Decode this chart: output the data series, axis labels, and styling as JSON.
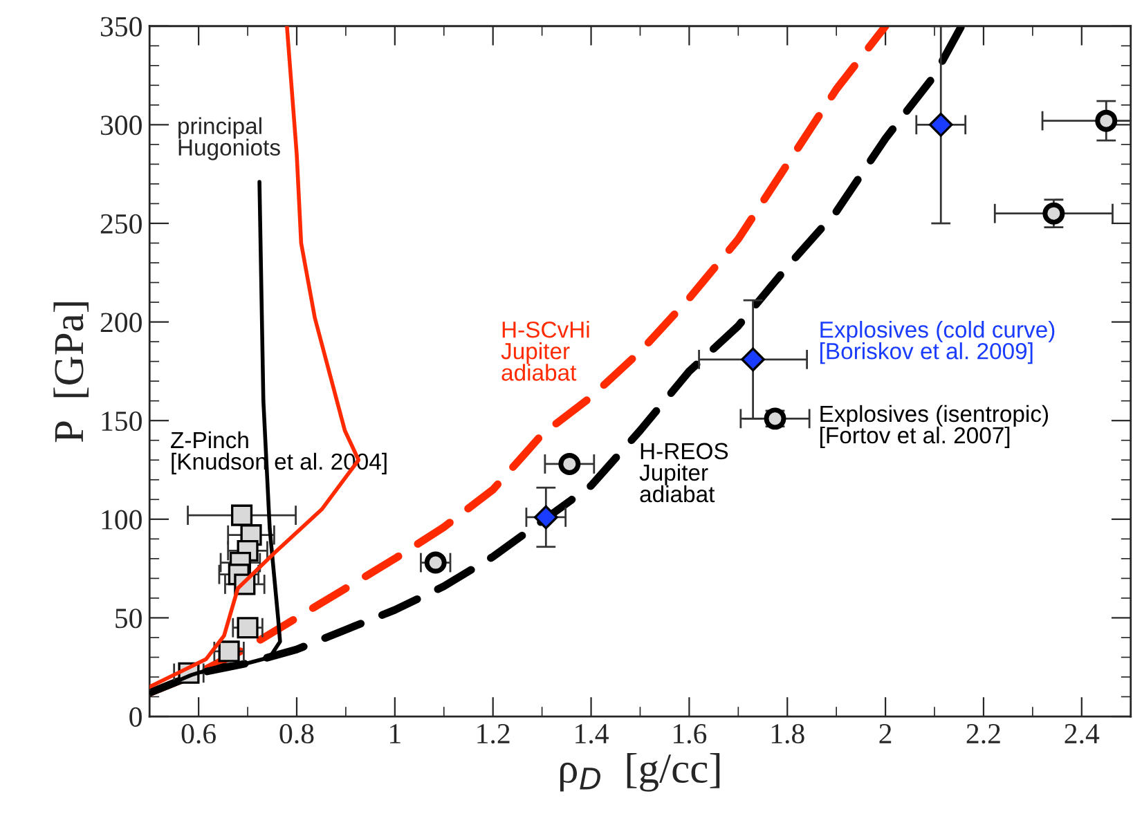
{
  "chart_data": {
    "type": "line",
    "xlabel": "ρ$_{D}$  [g/cc]",
    "ylabel": "P  [GPa]",
    "xlim": [
      0.5,
      2.5
    ],
    "ylim": [
      0,
      350
    ],
    "xticks": [
      0.6,
      0.8,
      1,
      1.2,
      1.4,
      1.6,
      1.8,
      2,
      2.2,
      2.4
    ],
    "yticks": [
      0,
      50,
      100,
      150,
      200,
      250,
      300,
      350
    ],
    "grid": false,
    "legend": false,
    "annotations": [
      "principal\nHugoniots"
    ],
    "series": [
      {
        "color": "#000000",
        "line_style": "solid",
        "x": [
          0.5,
          0.585,
          0.65,
          0.7,
          0.745,
          0.766,
          0.762,
          0.745,
          0.732,
          0.724
        ],
        "values": [
          12,
          21,
          26,
          27,
          30,
          38,
          50,
          95,
          160,
          271
        ]
      },
      {
        "color": "#ff2a00",
        "line_style": "solid",
        "x": [
          0.5,
          0.615,
          0.652,
          0.68,
          0.755,
          0.851,
          0.926,
          0.898,
          0.837,
          0.809,
          0.8,
          0.78
        ],
        "values": [
          15,
          29,
          41,
          65,
          83,
          105,
          130,
          145,
          202,
          240,
          285,
          350
        ]
      },
      {
        "name": "H-SCvHi\nJupiter\nadiabat",
        "color": "#ff2a00",
        "line_style": "dashed",
        "x": [
          0.5,
          0.6,
          0.7,
          0.8,
          0.9,
          1.0,
          1.1,
          1.2,
          1.3,
          1.4,
          1.5,
          1.6,
          1.7,
          1.8,
          1.9,
          2.0
        ],
        "values": [
          12,
          22,
          35,
          50,
          65,
          80,
          96,
          115,
          143,
          162,
          185,
          212,
          242,
          280,
          318,
          350
        ]
      },
      {
        "name": "H-REOS\nJupiter\nadiabat",
        "color": "#000000",
        "line_style": "dashed",
        "x": [
          0.5,
          0.6,
          0.7,
          0.8,
          0.9,
          1.0,
          1.1,
          1.2,
          1.3,
          1.4,
          1.5,
          1.6,
          1.7,
          1.8,
          1.9,
          2.0,
          2.1,
          2.155
        ],
        "values": [
          12,
          22,
          27,
          34,
          44,
          54,
          66,
          81,
          99,
          117,
          145,
          175,
          198,
          228,
          256,
          293,
          325,
          350
        ]
      },
      {
        "type": "scatter",
        "name": "Z-Pinch\n[Knudson et al. 2004]",
        "color": "#d9d9d9",
        "marker": "square",
        "x": [
          0.688,
          0.707,
          0.7,
          0.685,
          0.682,
          0.694,
          0.7,
          0.662,
          0.58
        ],
        "values": [
          102,
          92,
          84,
          78,
          72,
          67,
          45,
          33,
          22
        ],
        "xerrors": [
          0.11,
          0.047,
          0.04,
          0.04,
          0.04,
          0.04,
          0.03,
          0.03,
          0.03
        ]
      },
      {
        "type": "scatter",
        "name": "Explosives (isentropic)\n[Fortov et al. 2007]",
        "color": "#d9d9d9",
        "marker": "circle",
        "x": [
          1.083,
          1.356,
          1.775,
          2.343,
          2.45
        ],
        "values": [
          78,
          128,
          151,
          255,
          302
        ],
        "xerrors": [
          0.03,
          0.05,
          0.07,
          0.12,
          [
            2.32,
            2.5
          ]
        ],
        "errors": [
          null,
          null,
          4,
          7,
          10
        ]
      },
      {
        "type": "scatter",
        "name": "Explosives (cold curve)\n[Boriskov et al. 2009]",
        "color": "#1a3cff",
        "marker": "diamond",
        "x": [
          1.308,
          1.73,
          2.113
        ],
        "values": [
          101,
          181,
          300
        ],
        "xerrors": [
          0.04,
          0.11,
          0.05
        ],
        "errors": [
          15,
          30,
          50
        ]
      }
    ]
  }
}
